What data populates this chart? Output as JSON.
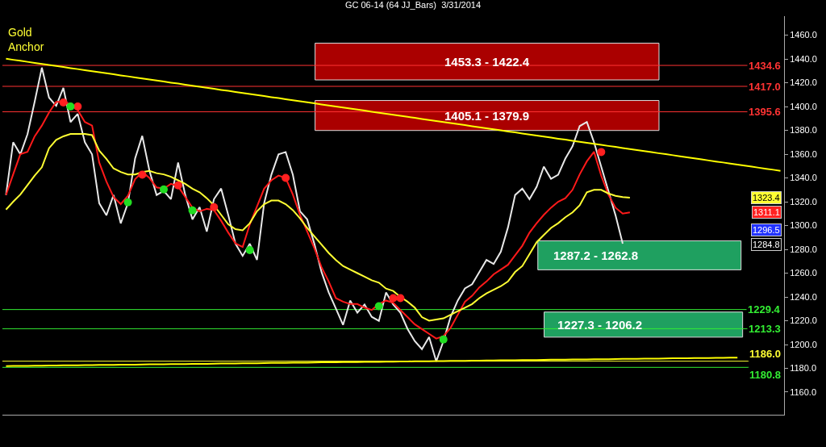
{
  "chart_data": {
    "type": "line",
    "title": "GC 06-14 (64 JJ_Bars)  3/31/2014",
    "categories": [
      null,
      null,
      null,
      null,
      null,
      null,
      null,
      null,
      null,
      null,
      null,
      null,
      null,
      null,
      null,
      null,
      null,
      null,
      null,
      null,
      null,
      null,
      null,
      null,
      null,
      null,
      null,
      null,
      null,
      null,
      null,
      null,
      null,
      null,
      null,
      null,
      null,
      null,
      null,
      null,
      null,
      null,
      null,
      null,
      null,
      null,
      null,
      null,
      null,
      null,
      null,
      null,
      null,
      null,
      null,
      null,
      null,
      null,
      null,
      null,
      null,
      null,
      null,
      null,
      null,
      null,
      null,
      null,
      null,
      null,
      null,
      null,
      null,
      null,
      null,
      null,
      null,
      null,
      null,
      null,
      null,
      null,
      null,
      null,
      null,
      null,
      null,
      null,
      null,
      null,
      null,
      null,
      null,
      null,
      null,
      null,
      null,
      null,
      null,
      null,
      null,
      null,
      null,
      null,
      null,
      null,
      null,
      null,
      null
    ],
    "ylim": [
      1141,
      1476
    ],
    "yticks": [
      {
        "value": 1160,
        "label": "1160.0"
      },
      {
        "value": 1180,
        "label": "1180.0"
      },
      {
        "value": 1200,
        "label": "1200.0"
      },
      {
        "value": 1220,
        "label": "1220.0"
      },
      {
        "value": 1240,
        "label": "1240.0"
      },
      {
        "value": 1260,
        "label": "1260.0"
      },
      {
        "value": 1280,
        "label": "1280.0"
      },
      {
        "value": 1300,
        "label": "1300.0"
      },
      {
        "value": 1320,
        "label": "1320.0"
      },
      {
        "value": 1340,
        "label": "1340.0"
      },
      {
        "value": 1360,
        "label": "1360.0"
      },
      {
        "value": 1380,
        "label": "1380.0"
      },
      {
        "value": 1400,
        "label": "1400.0"
      },
      {
        "value": 1420,
        "label": "1420.0"
      },
      {
        "value": 1440,
        "label": "1440.0"
      },
      {
        "value": 1460,
        "label": "1460.0"
      }
    ],
    "tick_labels": "y",
    "grid": false,
    "legend": false,
    "series": [
      {
        "color": "#e8e8e8",
        "values": [
          1325.7,
          1370.0,
          1359.8,
          1376.8,
          1404.1,
          1432.7,
          1407.5,
          1400.7,
          1415.7,
          1387.0,
          1393.8,
          1370.0,
          1359.8,
          1318.8,
          1308.6,
          1325.7,
          1301.8,
          1318.8,
          1356.3,
          1375.4,
          1346.1,
          1325.7,
          1329.1,
          1322.2,
          1352.9,
          1325.7,
          1305.2,
          1315.4,
          1294.9,
          1322.2,
          1331.1,
          1308.6,
          1284.7,
          1274.5,
          1284.7,
          1271.1,
          1318.8,
          1342.7,
          1359.8,
          1361.8,
          1342.7,
          1312.0,
          1305.2,
          1284.7,
          1260.9,
          1243.8,
          1230.2,
          1216.5,
          1237.0,
          1226.8,
          1233.6,
          1223.3,
          1219.9,
          1243.8,
          1233.6,
          1226.8,
          1213.1,
          1202.9,
          1196.1,
          1206.3,
          1185.8,
          1202.9,
          1223.3,
          1237.0,
          1247.2,
          1250.6,
          1260.9,
          1271.1,
          1267.7,
          1277.9,
          1298.4,
          1325.7,
          1331.1,
          1322.2,
          1332.5,
          1349.5,
          1339.3,
          1342.7,
          1356.3,
          1366.6,
          1383.6,
          1387.0,
          1370.0,
          1349.5,
          1329.1,
          1308.6,
          1284.8,
          null,
          null,
          null,
          null,
          null,
          null,
          null,
          null,
          null,
          null,
          null,
          null,
          null,
          null,
          null,
          null,
          null,
          null,
          null,
          null,
          null,
          null
        ]
      },
      {
        "color": "#ff1a1a",
        "values": [
          1325.7,
          1343,
          1360,
          1362,
          1375,
          1384,
          1395,
          1404,
          1404,
          1402,
          1397,
          1387,
          1384,
          1353,
          1337,
          1324,
          1318,
          1325,
          1339,
          1345,
          1340,
          1332,
          1331,
          1335,
          1333,
          1324,
          1315,
          1312,
          1314,
          1313,
          1304,
          1294,
          1285,
          1282,
          1301,
          1316,
          1331,
          1338,
          1342,
          1340,
          1326,
          1309,
          1295,
          1281,
          1265,
          1253,
          1239,
          1236,
          1234,
          1234,
          1231,
          1229,
          1234,
          1237,
          1235,
          1229,
          1223,
          1217,
          1213,
          1209,
          1205,
          1207,
          1214,
          1225,
          1236,
          1241,
          1248,
          1253,
          1259,
          1263,
          1267,
          1275,
          1283,
          1294,
          1302,
          1309,
          1315,
          1320,
          1323,
          1330,
          1343,
          1354,
          1362,
          1342,
          1326,
          1315,
          1310,
          1311.1,
          null,
          null,
          null,
          null,
          null,
          null,
          null,
          null,
          null,
          null,
          null,
          null,
          null,
          null,
          null,
          null,
          null,
          null,
          null,
          null,
          null
        ]
      },
      {
        "color": "#ffff33",
        "values": [
          1313.4,
          1320,
          1326,
          1334,
          1342,
          1349,
          1365,
          1372,
          1375,
          1377,
          1377,
          1377,
          1376,
          1363,
          1356,
          1348,
          1345,
          1343,
          1343,
          1345,
          1346,
          1344,
          1343,
          1341,
          1338,
          1335,
          1331,
          1328,
          1323,
          1317,
          1309,
          1301,
          1297,
          1296,
          1302,
          1312,
          1318,
          1321,
          1321,
          1318,
          1313,
          1306,
          1298,
          1291,
          1284,
          1277,
          1271,
          1266,
          1263,
          1260,
          1257,
          1254,
          1252,
          1247,
          1245,
          1240,
          1236,
          1231,
          1223,
          1220,
          1221,
          1222,
          1225,
          1228,
          1231,
          1234,
          1239,
          1243,
          1246,
          1249,
          1253,
          1261,
          1266,
          1276,
          1286,
          1292,
          1298,
          1302,
          1307,
          1311,
          1317,
          1328,
          1330,
          1330,
          1327,
          1325,
          1324,
          1323.4,
          null,
          null,
          null,
          null,
          null,
          null,
          null,
          null,
          null,
          null,
          null,
          null,
          null,
          null,
          null,
          null,
          null,
          null,
          null,
          null,
          null
        ]
      },
      {
        "color": "#ffff00",
        "values": [
          1440.2,
          1439.3,
          1438.5,
          1437.6,
          1436.7,
          1435.8,
          1435.0,
          1434.1,
          1433.2,
          1432.3,
          1431.5,
          1430.6,
          1429.7,
          1428.9,
          1428.0,
          1427.1,
          1426.2,
          1425.4,
          1424.5,
          1423.6,
          1422.8,
          1421.9,
          1421.0,
          1420.1,
          1419.3,
          1418.4,
          1417.5,
          1416.6,
          1415.8,
          1414.9,
          1414.0,
          1413.2,
          1412.3,
          1411.4,
          1410.5,
          1409.7,
          1408.8,
          1407.9,
          1407.1,
          1406.2,
          1405.3,
          1404.4,
          1403.6,
          1402.7,
          1401.8,
          1400.9,
          1400.1,
          1399.2,
          1398.3,
          1397.5,
          1396.6,
          1395.7,
          1394.8,
          1394.0,
          1393.1,
          1392.2,
          1391.4,
          1390.5,
          1389.6,
          1388.7,
          1387.9,
          1387.0,
          1386.1,
          1385.3,
          1384.4,
          1383.5,
          1382.6,
          1381.8,
          1380.9,
          1380.0,
          1379.1,
          1378.3,
          1377.4,
          1376.5,
          1375.7,
          1374.8,
          1373.9,
          1373.0,
          1372.2,
          1371.3,
          1370.4,
          1369.6,
          1368.7,
          1367.8,
          1366.9,
          1366.1,
          1365.2,
          1364.3,
          1363.4,
          1362.6,
          1361.7,
          1360.8,
          1360.0,
          1359.1,
          1358.2,
          1357.3,
          1356.5,
          1355.6,
          1354.7,
          1353.8,
          1353.0,
          1352.1,
          1351.2,
          1350.4,
          1349.5,
          1348.6,
          1347.7,
          1346.9,
          1346.0
        ]
      },
      {
        "color": "#ffff00",
        "values": [
          1181.9,
          1182.0,
          1182.0,
          1182.1,
          1182.2,
          1182.2,
          1182.3,
          1182.4,
          1182.5,
          1182.5,
          1182.6,
          1182.7,
          1182.7,
          1182.8,
          1182.9,
          1182.9,
          1183.0,
          1183.1,
          1183.1,
          1183.2,
          1183.3,
          1183.4,
          1183.4,
          1183.5,
          1183.6,
          1183.6,
          1183.7,
          1183.8,
          1183.8,
          1183.9,
          1184.0,
          1184.1,
          1184.1,
          1184.2,
          1184.3,
          1184.3,
          1184.4,
          1184.5,
          1184.5,
          1184.6,
          1184.7,
          1184.7,
          1184.8,
          1184.9,
          1185.0,
          1185.0,
          1185.1,
          1185.2,
          1185.2,
          1185.3,
          1185.4,
          1185.4,
          1185.5,
          1185.6,
          1185.6,
          1185.7,
          1185.8,
          1185.9,
          1185.9,
          1186.0,
          1186.1,
          1186.1,
          1186.2,
          1186.3,
          1186.3,
          1186.4,
          1186.5,
          1186.6,
          1186.6,
          1186.7,
          1186.8,
          1186.8,
          1186.9,
          1187.0,
          1187.0,
          1187.1,
          1187.2,
          1187.2,
          1187.3,
          1187.4,
          1187.5,
          1187.5,
          1187.6,
          1187.7,
          1187.7,
          1187.8,
          1187.9,
          1187.9,
          1188.0,
          1188.1,
          1188.1,
          1188.2,
          1188.3,
          1188.4,
          1188.4,
          1188.5,
          1188.6,
          1188.6,
          1188.7,
          1188.8,
          1188.8,
          1188.9,
          1189.0,
          null,
          null,
          null,
          null,
          null,
          null
        ]
      },
      {
        "type": "scatter",
        "marker": "circle",
        "color": "#ff2020",
        "values": [
          null,
          null,
          null,
          null,
          null,
          null,
          null,
          null,
          1403.4,
          null,
          1400.0,
          null,
          null,
          null,
          null,
          null,
          null,
          null,
          null,
          1342.7,
          null,
          null,
          null,
          null,
          1333.8,
          null,
          null,
          null,
          null,
          1315.4,
          null,
          null,
          null,
          null,
          null,
          null,
          null,
          null,
          null,
          1340.0,
          null,
          null,
          null,
          null,
          null,
          null,
          null,
          null,
          null,
          null,
          null,
          null,
          null,
          null,
          1239.0,
          1239.0,
          null,
          null,
          null,
          null,
          null,
          null,
          null,
          null,
          null,
          null,
          null,
          null,
          null,
          null,
          null,
          null,
          null,
          null,
          null,
          null,
          null,
          null,
          null,
          null,
          null,
          null,
          null,
          1361.8,
          null,
          null,
          null,
          null,
          null,
          null,
          null,
          null,
          null,
          null,
          null,
          null,
          null,
          null,
          null,
          null,
          null,
          null,
          null,
          null,
          null,
          null,
          null,
          null,
          null
        ]
      },
      {
        "type": "scatter",
        "marker": "circle",
        "color": "#22dd22",
        "values": [
          null,
          null,
          null,
          null,
          null,
          null,
          null,
          null,
          null,
          1400.0,
          null,
          null,
          null,
          null,
          null,
          null,
          null,
          1319.5,
          null,
          null,
          null,
          null,
          1330.4,
          null,
          null,
          null,
          1312.7,
          null,
          null,
          null,
          null,
          null,
          null,
          null,
          1279.3,
          null,
          null,
          null,
          null,
          null,
          null,
          null,
          null,
          null,
          null,
          null,
          null,
          null,
          null,
          null,
          null,
          null,
          1232.2,
          null,
          null,
          null,
          null,
          null,
          null,
          null,
          null,
          1204.2,
          null,
          null,
          null,
          null,
          null,
          null,
          null,
          null,
          null,
          null,
          null,
          null,
          null,
          null,
          null,
          null,
          null,
          null,
          null,
          null,
          null,
          null,
          null,
          null,
          null,
          null,
          null,
          null,
          null,
          null,
          null,
          null,
          null,
          null,
          null,
          null,
          null,
          null,
          null,
          null,
          null,
          null,
          null,
          null,
          null,
          null,
          null
        ]
      }
    ],
    "bands": [
      {
        "axis": "y",
        "from": 1422.4,
        "to": 1453.3,
        "label": "1453.3 - 1422.4",
        "color": "#aa0000"
      },
      {
        "axis": "y",
        "from": 1379.9,
        "to": 1405.1,
        "label": "1405.1 - 1379.9",
        "color": "#aa0000"
      },
      {
        "axis": "y",
        "from": 1262.8,
        "to": 1287.2,
        "label": "1287.2 - 1262.8",
        "color": "#1fa060"
      },
      {
        "axis": "y",
        "from": 1206.2,
        "to": 1227.3,
        "label": "1227.3 - 1206.2",
        "color": "#1fa060"
      }
    ],
    "ref_lines": [
      {
        "axis": "y",
        "value": 1434.6,
        "label": "1434.6",
        "color": "#ff3333"
      },
      {
        "axis": "y",
        "value": 1417.0,
        "label": "1417.0",
        "color": "#ff3333"
      },
      {
        "axis": "y",
        "value": 1395.6,
        "label": "1395.6",
        "color": "#ff3333"
      },
      {
        "axis": "y",
        "value": 1229.4,
        "label": "1229.4",
        "color": "#33ee33"
      },
      {
        "axis": "y",
        "value": 1213.3,
        "label": "1213.3",
        "color": "#33ee33"
      },
      {
        "axis": "y",
        "value": 1186.0,
        "label": "1186.0",
        "color": "#ffff33"
      },
      {
        "axis": "y",
        "value": 1180.8,
        "label": "1180.8",
        "color": "#33ee33"
      }
    ],
    "annotations": [
      "Gold Anchor",
      "1323.4",
      "1311.1",
      "1296.5",
      "1284.8"
    ]
  }
}
